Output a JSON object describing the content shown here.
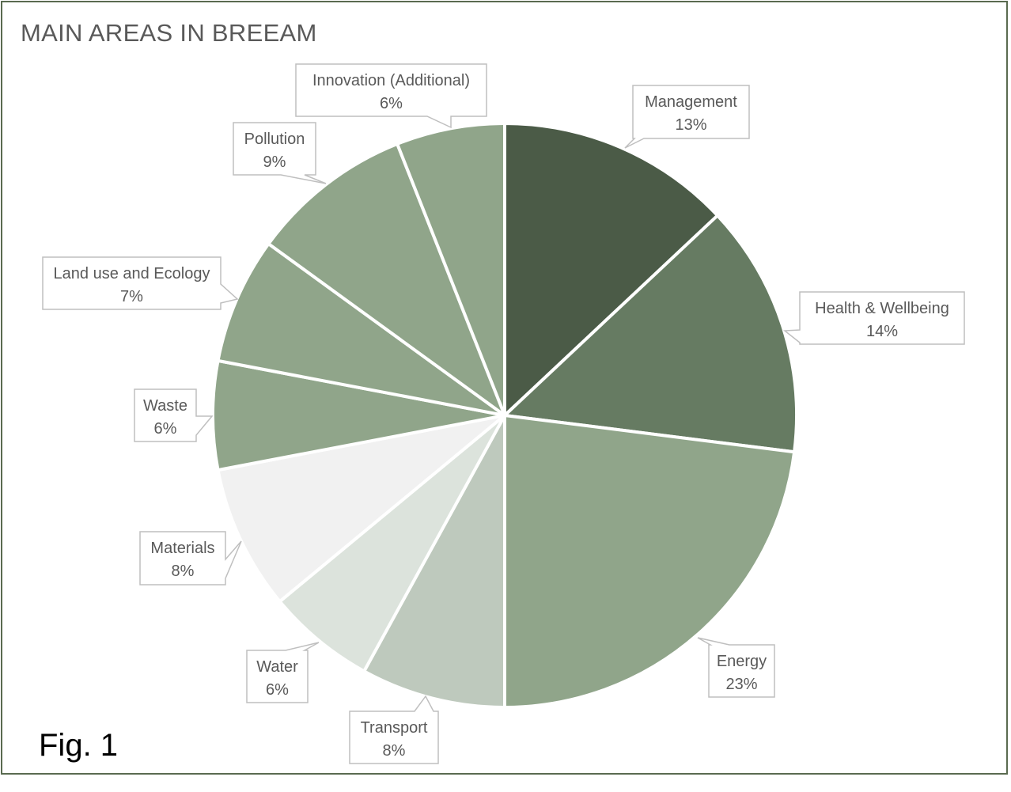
{
  "figure": {
    "caption": "Fig. 1"
  },
  "chart_data": {
    "type": "pie",
    "title": "MAIN AREAS IN BREEAM",
    "start_angle_deg": 0,
    "direction": "clockwise",
    "legend": "none",
    "data_labels": "callouts",
    "slices": [
      {
        "label": "Management",
        "value": 13,
        "display": "13%",
        "color": "#4b5b47"
      },
      {
        "label": "Health & Wellbeing",
        "value": 14,
        "display": "14%",
        "color": "#667b62"
      },
      {
        "label": "Energy",
        "value": 23,
        "display": "23%",
        "color": "#90a58a"
      },
      {
        "label": "Transport",
        "value": 8,
        "display": "8%",
        "color": "#bec9bd"
      },
      {
        "label": "Water",
        "value": 6,
        "display": "6%",
        "color": "#dce3dc"
      },
      {
        "label": "Materials",
        "value": 8,
        "display": "8%",
        "color": "#f1f1f1"
      },
      {
        "label": "Waste",
        "value": 6,
        "display": "6%",
        "color": "#90a58a"
      },
      {
        "label": "Land use and Ecology",
        "value": 7,
        "display": "7%",
        "color": "#90a58a"
      },
      {
        "label": "Pollution",
        "value": 9,
        "display": "9%",
        "color": "#90a58a"
      },
      {
        "label": "Innovation (Additional)",
        "value": 6,
        "display": "6%",
        "color": "#90a58a"
      }
    ],
    "slice_border_color": "#ffffff",
    "callout_border_color": "#bfbfbf",
    "text_color": "#595959"
  }
}
